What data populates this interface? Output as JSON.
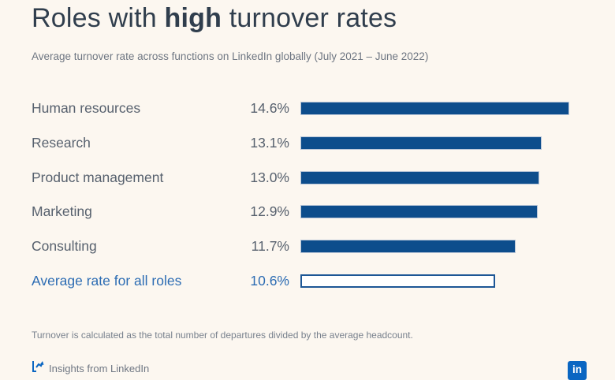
{
  "page": {
    "background_color": "#fcf7f0"
  },
  "header": {
    "title_prefix": "Roles with ",
    "title_emphasis": "high",
    "title_suffix": " turnover rates",
    "subtitle": "Average turnover rate across functions on LinkedIn globally (July 2021 – June 2022)"
  },
  "chart_data": {
    "type": "bar",
    "orientation": "horizontal",
    "title": "Roles with high turnover rates",
    "subtitle": "Average turnover rate across functions on LinkedIn globally (July 2021 – June 2022)",
    "categories": [
      "Human resources",
      "Research",
      "Product management",
      "Marketing",
      "Consulting",
      "Average rate for all roles"
    ],
    "values": [
      14.6,
      13.1,
      13.0,
      12.9,
      11.7,
      10.6
    ],
    "value_labels": [
      "14.6%",
      "13.1%",
      "13.0%",
      "12.9%",
      "11.7%",
      "10.6%"
    ],
    "average_row_index": 5,
    "average_bar_style": "hollow",
    "xlim": [
      0,
      15
    ],
    "grid": false,
    "legend": false,
    "bar_color": "#0d4d8c",
    "average_border_color": "#1d5796",
    "accent_text_color": "#2c6cb3"
  },
  "footer": {
    "note": "Turnover is calculated as the total number of departures divided by the average headcount.",
    "attribution": "Insights from LinkedIn",
    "attribution_icon": "economic-graph-chart-icon",
    "logo_text": "in",
    "logo_color": "#0a66c2"
  }
}
